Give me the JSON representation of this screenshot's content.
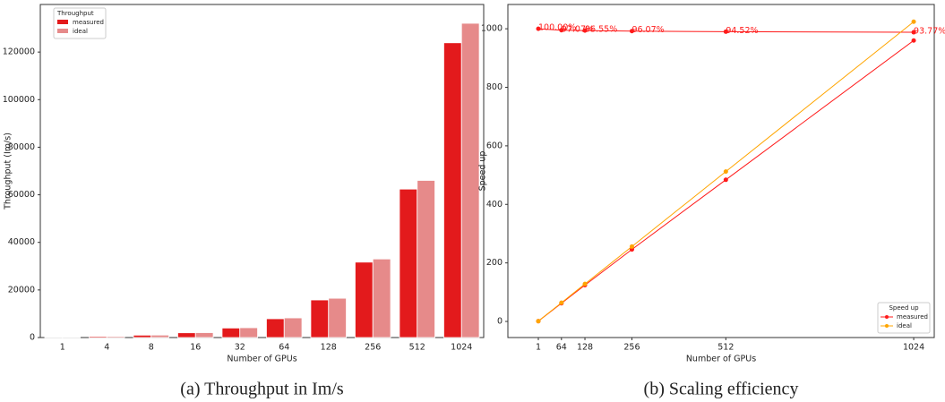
{
  "chart_data": [
    {
      "type": "bar",
      "ylabel": "Throughput (Im/s)",
      "xlabel": "Number of GPUs",
      "caption": "(a) Throughput in Im/s",
      "legend_title": "Throughput",
      "legend": "upper left",
      "categories": [
        "1",
        "4",
        "8",
        "16",
        "32",
        "64",
        "128",
        "256",
        "512",
        "1024"
      ],
      "series": [
        {
          "name": "measured",
          "color": "#e31a1c",
          "values": [
            129,
            500,
            1000,
            2000,
            4000,
            7900,
            15800,
            31700,
            62400,
            123900
          ]
        },
        {
          "name": "ideal",
          "color": "#e68a8a",
          "values": [
            129,
            516,
            1032,
            2064,
            4128,
            8256,
            16512,
            33024,
            66048,
            132096
          ]
        }
      ],
      "ylim": [
        0,
        140000
      ],
      "yticks": [
        0,
        20000,
        40000,
        60000,
        80000,
        100000,
        120000
      ]
    },
    {
      "type": "line",
      "ylabel": "Speed up",
      "xlabel": "Number of GPUs",
      "caption": "(b) Scaling efficiency",
      "legend_title": "Speed up",
      "legend": "lower right",
      "x": [
        1,
        64,
        128,
        256,
        512,
        1024
      ],
      "series": [
        {
          "name": "measured",
          "color": "#ff1a1a",
          "values": [
            1,
            62,
            124,
            246,
            484,
            960
          ]
        },
        {
          "name": "ideal",
          "color": "#ffa500",
          "values": [
            1,
            64,
            128,
            256,
            512,
            1024
          ]
        }
      ],
      "efficiency": {
        "color": "#ff1a1a",
        "values": [
          1000,
          995,
          994,
          992,
          990,
          988
        ],
        "labels": [
          "100.00%",
          "97.07%",
          "96.55%",
          "96.07%",
          "94.52%",
          "93.77%"
        ]
      },
      "xlim": [
        -82,
        1080
      ],
      "xticks": [
        1,
        64,
        128,
        256,
        512,
        1024
      ],
      "ylim": [
        -55,
        1083
      ],
      "yticks": [
        0,
        200,
        400,
        600,
        800,
        1000
      ]
    }
  ]
}
